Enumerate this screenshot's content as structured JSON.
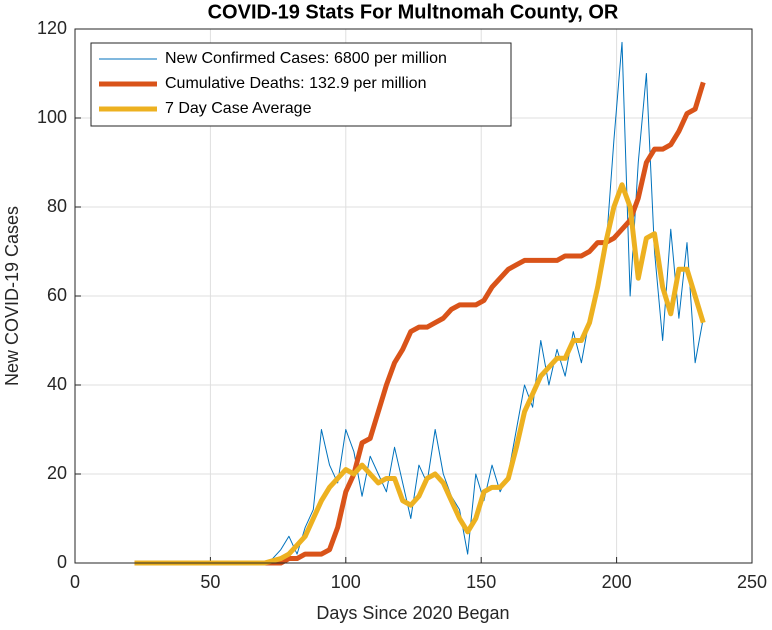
{
  "chart_data": {
    "type": "line",
    "title": "COVID-19 Stats For Multnomah County, OR",
    "x_label": "Days Since 2020 Began",
    "y_label": "New COVID-19 Cases",
    "x": [
      22,
      25,
      28,
      31,
      34,
      37,
      40,
      43,
      46,
      49,
      52,
      55,
      58,
      61,
      64,
      67,
      70,
      73,
      76,
      79,
      82,
      85,
      88,
      91,
      94,
      97,
      100,
      103,
      106,
      109,
      112,
      115,
      118,
      121,
      124,
      127,
      130,
      133,
      136,
      139,
      142,
      145,
      148,
      151,
      154,
      157,
      160,
      163,
      166,
      169,
      172,
      175,
      178,
      181,
      184,
      187,
      190,
      193,
      196,
      199,
      202,
      205,
      208,
      211,
      214,
      217,
      220,
      223,
      226,
      229,
      232
    ],
    "series": [
      {
        "name": "New Confirmed Cases: 6800 per million",
        "color": "#0072bd",
        "width": 1,
        "values": [
          0,
          0,
          0,
          0,
          0,
          0,
          0,
          0,
          0,
          0,
          0,
          0,
          0,
          0,
          0,
          0,
          0,
          1,
          3,
          6,
          2,
          8,
          12,
          30,
          22,
          18,
          30,
          25,
          15,
          24,
          20,
          16,
          26,
          18,
          10,
          22,
          18,
          30,
          20,
          15,
          12,
          2,
          20,
          14,
          22,
          16,
          20,
          30,
          40,
          35,
          50,
          40,
          48,
          42,
          52,
          45,
          55,
          62,
          70,
          95,
          117,
          60,
          90,
          110,
          70,
          50,
          75,
          55,
          72,
          45,
          55
        ]
      },
      {
        "name": "Cumulative Deaths: 132.9 per million",
        "color": "#d95319",
        "width": 5,
        "values": [
          0,
          0,
          0,
          0,
          0,
          0,
          0,
          0,
          0,
          0,
          0,
          0,
          0,
          0,
          0,
          0,
          0,
          0,
          0,
          1,
          1,
          2,
          2,
          2,
          3,
          8,
          16,
          20,
          27,
          28,
          34,
          40,
          45,
          48,
          52,
          53,
          53,
          54,
          55,
          57,
          58,
          58,
          58,
          59,
          62,
          64,
          66,
          67,
          68,
          68,
          68,
          68,
          68,
          69,
          69,
          69,
          70,
          72,
          72,
          73,
          75,
          77,
          82,
          90,
          93,
          93,
          94,
          97,
          101,
          102,
          108
        ]
      },
      {
        "name": "7 Day Case Average",
        "color": "#edb120",
        "width": 5,
        "values": [
          0,
          0,
          0,
          0,
          0,
          0,
          0,
          0,
          0,
          0,
          0,
          0,
          0,
          0,
          0,
          0,
          0,
          0.5,
          1,
          2,
          4,
          6,
          10,
          14,
          17,
          19,
          21,
          20,
          22,
          20,
          18,
          19,
          19,
          14,
          13,
          15,
          19,
          20,
          18,
          14,
          10,
          7,
          10,
          16,
          17,
          17,
          19,
          26,
          34,
          38,
          42,
          44,
          46,
          46,
          50,
          50,
          54,
          62,
          72,
          80,
          85,
          80,
          64,
          73,
          74,
          62,
          56,
          66,
          66,
          60,
          54
        ]
      }
    ],
    "xlim": [
      0,
      250
    ],
    "xticks": [
      0,
      50,
      100,
      150,
      200,
      250
    ],
    "ylim": [
      0,
      120
    ],
    "yticks": [
      0,
      20,
      40,
      60,
      80,
      100,
      120
    ],
    "grid": true,
    "legend": "upper-left"
  }
}
